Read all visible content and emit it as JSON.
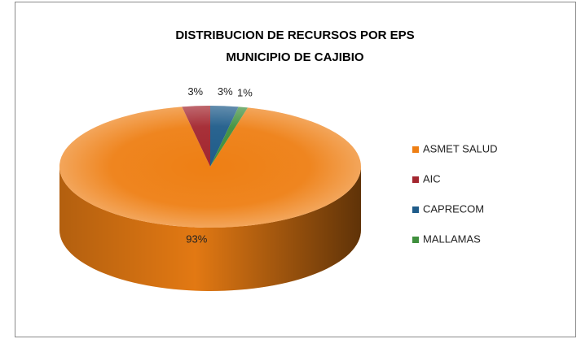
{
  "chart_data": {
    "type": "pie3d",
    "title": [
      "DISTRIBUCION DE RECURSOS POR EPS",
      "MUNICIPIO DE CAJIBIO"
    ],
    "categories": [
      "ASMET SALUD",
      "AIC",
      "CAPRECOM",
      "MALLAMAS"
    ],
    "values": [
      93,
      3,
      3,
      1
    ],
    "value_labels": [
      "93%",
      "3%",
      "3%",
      "1%"
    ],
    "colors": [
      "#ee7f14",
      "#a3262f",
      "#1f5c8a",
      "#3f8f3d"
    ],
    "legend": "right"
  }
}
